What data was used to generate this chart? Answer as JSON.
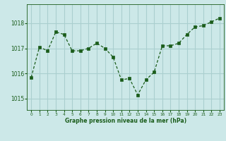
{
  "x": [
    0,
    1,
    2,
    3,
    4,
    5,
    6,
    7,
    8,
    9,
    10,
    11,
    12,
    13,
    14,
    15,
    16,
    17,
    18,
    19,
    20,
    21,
    22,
    23
  ],
  "y": [
    1015.85,
    1017.05,
    1016.9,
    1017.65,
    1017.55,
    1016.9,
    1016.9,
    1017.0,
    1017.2,
    1017.0,
    1016.65,
    1015.75,
    1015.8,
    1015.15,
    1015.75,
    1016.05,
    1017.1,
    1017.1,
    1017.2,
    1017.55,
    1017.85,
    1017.9,
    1018.05,
    1018.2
  ],
  "line_color": "#1a5c1a",
  "marker_color": "#1a5c1a",
  "bg_color": "#cce8e8",
  "grid_color": "#aacfcf",
  "xlabel": "Graphe pression niveau de la mer (hPa)",
  "xlabel_color": "#1a5c1a",
  "tick_color": "#1a5c1a",
  "yticks": [
    1015,
    1016,
    1017,
    1018
  ],
  "ylim": [
    1014.55,
    1018.75
  ],
  "xlim": [
    -0.5,
    23.5
  ]
}
